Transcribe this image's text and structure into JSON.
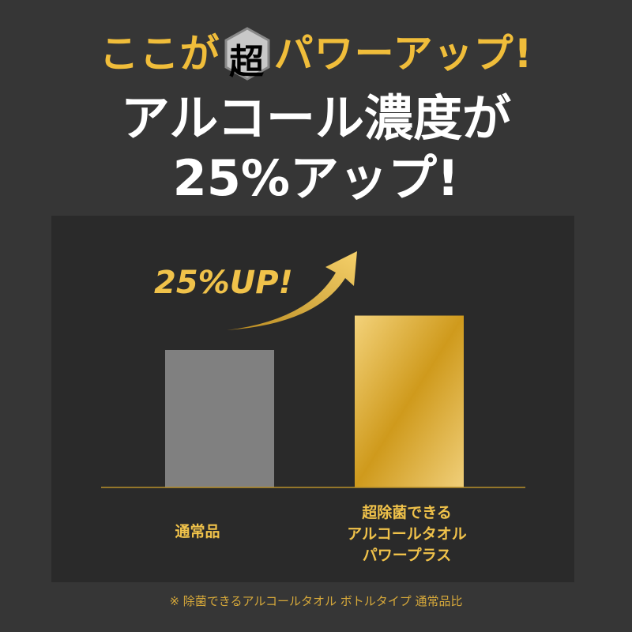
{
  "header": {
    "line1_pre": "ここが",
    "badge": "超",
    "line1_post": "パワーアップ!",
    "line2": "アルコール濃度が",
    "line3": "25%アップ!"
  },
  "chart_data": {
    "type": "bar",
    "categories": [
      "通常品",
      "超除菌できる\nアルコールタオル\nパワープラス"
    ],
    "values": [
      100,
      125
    ],
    "annotation": "25%UP!",
    "colors": [
      "#808080",
      "#d4a227"
    ],
    "grid": false
  },
  "labels": {
    "cat0": "通常品",
    "cat1_l1": "超除菌できる",
    "cat1_l2": "アルコールタオル",
    "cat1_l3": "パワープラス"
  },
  "footnote": "※ 除菌できるアルコールタオル ボトルタイプ 通常品比"
}
